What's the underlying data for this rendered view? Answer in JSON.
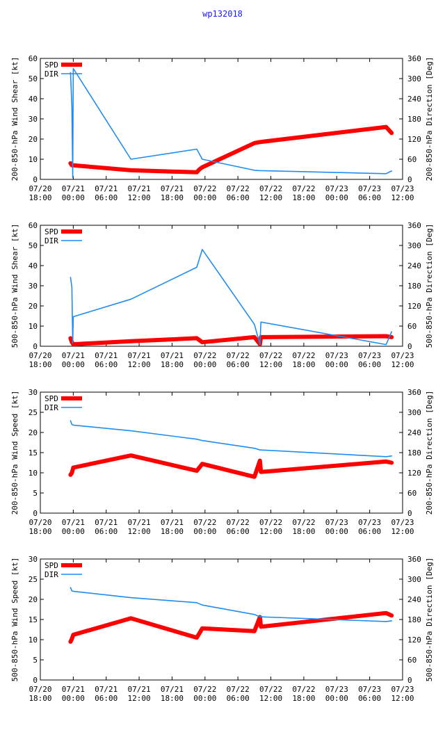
{
  "page": {
    "title": "wp132018"
  },
  "colors": {
    "spd": "#ff0000",
    "dir": "#1e8cf0",
    "frame": "#000000",
    "title": "#1a1aff"
  },
  "legend": {
    "spd": "SPD",
    "dir": "DIR"
  },
  "xaxis": {
    "ticks": [
      {
        "top": "07/20",
        "bottom": "18:00"
      },
      {
        "top": "07/21",
        "bottom": "00:00"
      },
      {
        "top": "07/21",
        "bottom": "06:00"
      },
      {
        "top": "07/21",
        "bottom": "12:00"
      },
      {
        "top": "07/21",
        "bottom": "18:00"
      },
      {
        "top": "07/22",
        "bottom": "00:00"
      },
      {
        "top": "07/22",
        "bottom": "06:00"
      },
      {
        "top": "07/22",
        "bottom": "12:00"
      },
      {
        "top": "07/22",
        "bottom": "18:00"
      },
      {
        "top": "07/23",
        "bottom": "00:00"
      },
      {
        "top": "07/23",
        "bottom": "06:00"
      },
      {
        "top": "07/23",
        "bottom": "12:00"
      }
    ]
  },
  "chart_data": [
    {
      "type": "line",
      "ylabel": "200-850-hPa Wind Shear [kt]",
      "y2label": "200-850-hPa Direction [Deg]",
      "ylim": [
        0,
        60
      ],
      "yticks": [
        0,
        10,
        20,
        30,
        40,
        50,
        60
      ],
      "y2lim": [
        0,
        360
      ],
      "y2ticks": [
        0,
        60,
        120,
        180,
        240,
        300,
        360
      ],
      "xlim_hours": [
        0,
        66
      ],
      "series": [
        {
          "name": "SPD",
          "axis": "left",
          "x": [
            5.5,
            5.75,
            6.0,
            16.5,
            28.5,
            29.0,
            29.5,
            39.0,
            40.0,
            63.0,
            64.0
          ],
          "y": [
            8,
            7,
            7,
            4.5,
            3.5,
            5,
            6,
            18,
            18.5,
            26,
            23
          ]
        },
        {
          "name": "DIR",
          "axis": "right",
          "x": [
            5.5,
            5.75,
            5.9,
            6.0,
            16.5,
            28.5,
            29.5,
            39.0,
            40.0,
            63.0,
            64.0
          ],
          "y": [
            318,
            215,
            5,
            330,
            60,
            90,
            60,
            27,
            26,
            17,
            25
          ]
        }
      ]
    },
    {
      "type": "line",
      "ylabel": "500-850-hPa Wind Shear [kt]",
      "y2label": "500-850-hPa Direction [Deg]",
      "ylim": [
        0,
        60
      ],
      "yticks": [
        0,
        10,
        20,
        30,
        40,
        50,
        60
      ],
      "y2lim": [
        0,
        360
      ],
      "y2ticks": [
        0,
        60,
        120,
        180,
        240,
        300,
        360
      ],
      "xlim_hours": [
        0,
        66
      ],
      "series": [
        {
          "name": "SPD",
          "axis": "left",
          "x": [
            5.5,
            5.75,
            6.0,
            16.5,
            28.5,
            29.5,
            39.0,
            40.0,
            40.2,
            63.0,
            64.0
          ],
          "y": [
            4,
            2,
            1,
            2.5,
            4,
            2,
            4.5,
            1,
            4.5,
            5,
            4.5
          ]
        },
        {
          "name": "DIR",
          "axis": "right",
          "x": [
            5.5,
            5.75,
            5.9,
            6.0,
            16.5,
            28.5,
            29.5,
            39.0,
            40.0,
            40.2,
            63.0,
            64.0
          ],
          "y": [
            205,
            175,
            10,
            88,
            140,
            235,
            288,
            65,
            5,
            72,
            5,
            43
          ]
        }
      ]
    },
    {
      "type": "line",
      "ylabel": "200-850-hPa Wind Speed [kt]",
      "y2label": "200-850-hPa Direction [Deg]",
      "ylim": [
        0,
        30
      ],
      "yticks": [
        0,
        5,
        10,
        15,
        20,
        25,
        30
      ],
      "y2lim": [
        0,
        360
      ],
      "y2ticks": [
        0,
        60,
        120,
        180,
        240,
        300,
        360
      ],
      "xlim_hours": [
        0,
        66
      ],
      "series": [
        {
          "name": "SPD",
          "axis": "left",
          "x": [
            5.5,
            5.75,
            6.0,
            16.5,
            28.5,
            29.5,
            39.0,
            40.0,
            40.2,
            63.0,
            64.0
          ],
          "y": [
            9.5,
            10,
            11.3,
            14.3,
            10.5,
            12.2,
            9,
            13,
            10.2,
            12.8,
            12.5
          ]
        },
        {
          "name": "DIR",
          "axis": "right",
          "x": [
            5.5,
            5.75,
            6.0,
            16.5,
            28.5,
            29.5,
            39.0,
            40.0,
            63.0,
            64.0
          ],
          "y": [
            275,
            264,
            262,
            245,
            220,
            216,
            193,
            188,
            168,
            170
          ]
        }
      ]
    },
    {
      "type": "line",
      "ylabel": "500-850-hPa Wind Speed [kt]",
      "y2label": "500-850-hPa Direction [Deg]",
      "ylim": [
        0,
        30
      ],
      "yticks": [
        0,
        5,
        10,
        15,
        20,
        25,
        30
      ],
      "y2lim": [
        0,
        360
      ],
      "y2ticks": [
        0,
        60,
        120,
        180,
        240,
        300,
        360
      ],
      "xlim_hours": [
        0,
        66
      ],
      "series": [
        {
          "name": "SPD",
          "axis": "left",
          "x": [
            5.5,
            5.75,
            6.0,
            16.5,
            28.5,
            29.5,
            39.0,
            40.0,
            40.2,
            63.0,
            64.0
          ],
          "y": [
            9.5,
            10.2,
            11.2,
            15.3,
            10.5,
            12.8,
            12.1,
            15.6,
            13.2,
            16.6,
            16
          ]
        },
        {
          "name": "DIR",
          "axis": "right",
          "x": [
            5.5,
            5.75,
            6.0,
            16.5,
            28.5,
            29.5,
            39.0,
            40.0,
            63.0,
            64.0
          ],
          "y": [
            275,
            265,
            264,
            245,
            230,
            223,
            195,
            188,
            174,
            176
          ]
        }
      ]
    }
  ]
}
